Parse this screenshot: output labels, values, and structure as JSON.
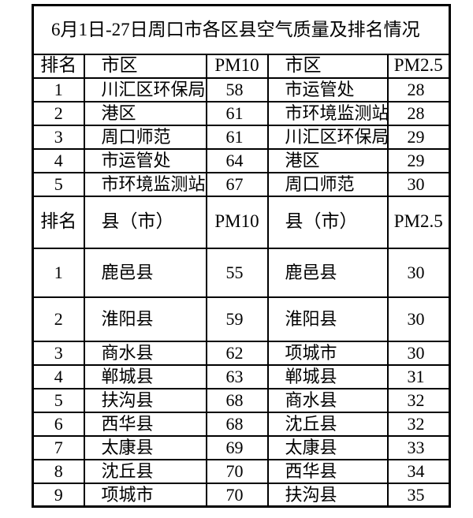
{
  "page": {
    "background_color": "#ffffff",
    "border_color": "#000000",
    "text_color": "#000000"
  },
  "table": {
    "title": "6月1日-27日周口市各区县空气质量及排名情况",
    "sections": [
      {
        "name": "urban-districts",
        "headers": [
          "排名",
          "市区",
          "PM10",
          "市区",
          "PM2.5"
        ],
        "rows": [
          [
            "1",
            "川汇区环保局",
            "58",
            "市运管处",
            "28"
          ],
          [
            "2",
            "港区",
            "61",
            "市环境监测站",
            "28"
          ],
          [
            "3",
            "周口师范",
            "61",
            "川汇区环保局",
            "29"
          ],
          [
            "4",
            "市运管处",
            "64",
            "港区",
            "29"
          ],
          [
            "5",
            "市环境监测站",
            "67",
            "周口师范",
            "30"
          ]
        ]
      },
      {
        "name": "counties",
        "headers": [
          "排名",
          "县（市）",
          "PM10",
          "县（市）",
          "PM2.5"
        ],
        "rows": [
          [
            "1",
            "鹿邑县",
            "55",
            "鹿邑县",
            "30"
          ],
          [
            "2",
            "淮阳县",
            "59",
            "淮阳县",
            "30"
          ],
          [
            "3",
            "商水县",
            "62",
            "项城市",
            "30"
          ],
          [
            "4",
            "郸城县",
            "63",
            "郸城县",
            "31"
          ],
          [
            "5",
            "扶沟县",
            "68",
            "商水县",
            "32"
          ],
          [
            "6",
            "西华县",
            "68",
            "沈丘县",
            "32"
          ],
          [
            "7",
            "太康县",
            "69",
            "太康县",
            "33"
          ],
          [
            "8",
            "沈丘县",
            "70",
            "西华县",
            "34"
          ],
          [
            "9",
            "项城市",
            "70",
            "扶沟县",
            "35"
          ]
        ]
      }
    ]
  }
}
